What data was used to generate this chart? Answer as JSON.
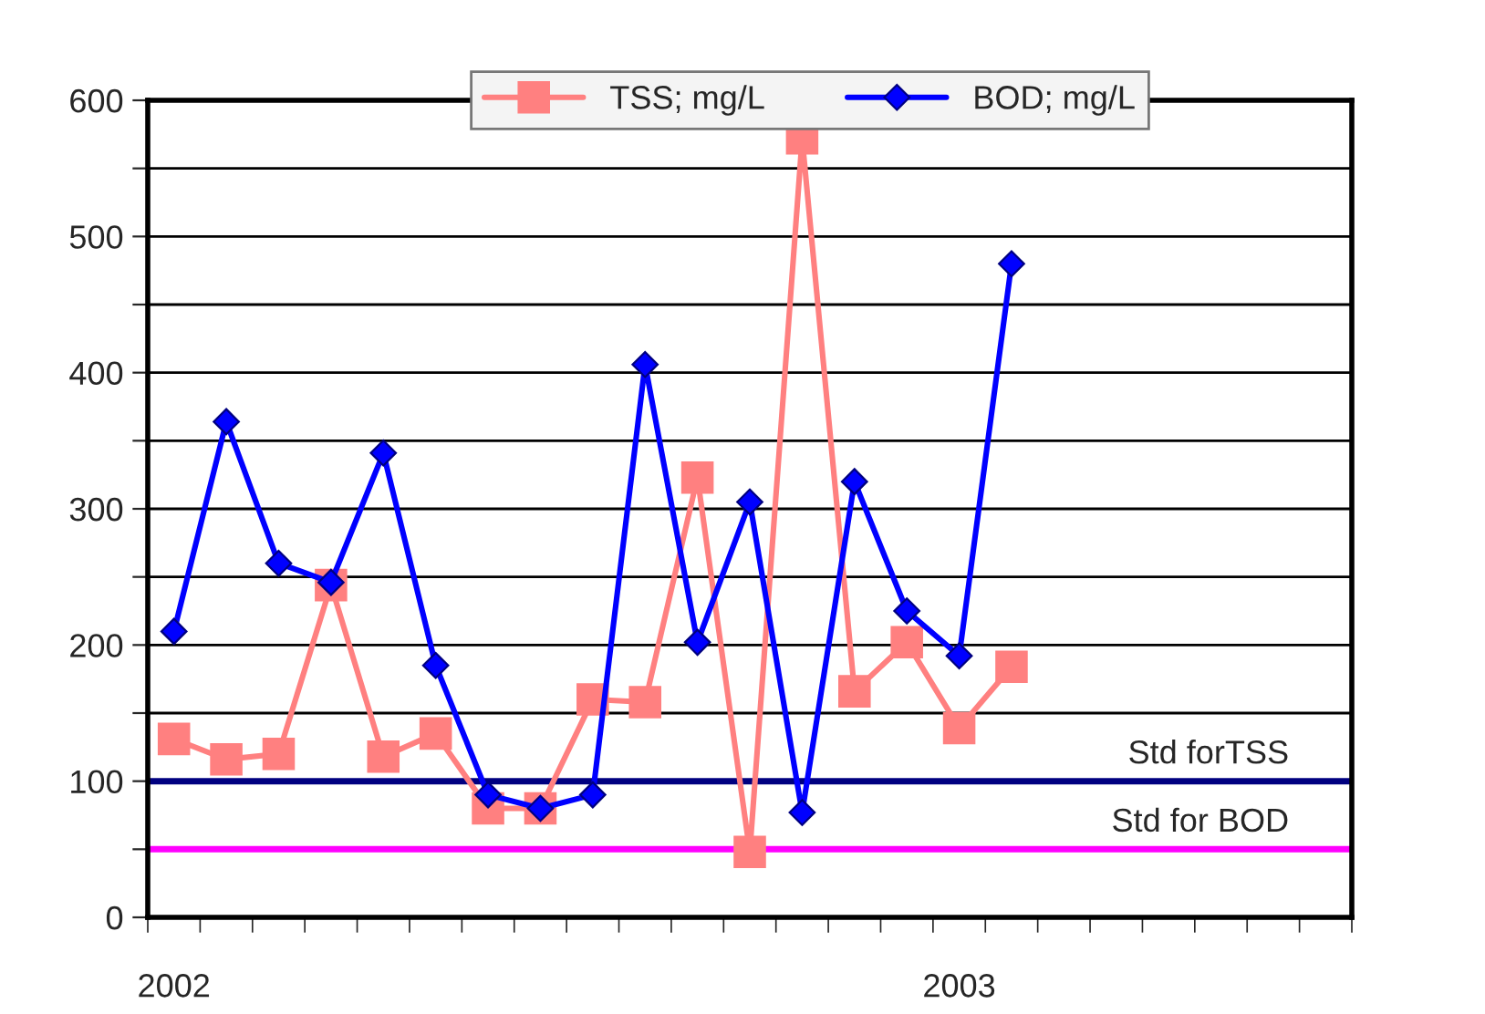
{
  "chart_data": {
    "type": "line",
    "categories": [
      "2002",
      null,
      null,
      null,
      null,
      null,
      null,
      null,
      null,
      null,
      null,
      null,
      null,
      null,
      null,
      "2003",
      null,
      null,
      null,
      null,
      null,
      null,
      null
    ],
    "series": [
      {
        "name": "TSS; mg/L",
        "color": "#ff8080",
        "marker": "square",
        "values": [
          131,
          116,
          120,
          244,
          118,
          135,
          80,
          80,
          160,
          158,
          323,
          48,
          572,
          166,
          202,
          139,
          184,
          null,
          null,
          null,
          null,
          null,
          null
        ]
      },
      {
        "name": "BOD; mg/L",
        "color": "#0000ff",
        "marker": "diamond",
        "values": [
          210,
          364,
          260,
          246,
          341,
          185,
          90,
          80,
          90,
          406,
          202,
          305,
          77,
          320,
          225,
          192,
          480,
          null,
          null,
          null,
          null,
          null,
          null
        ]
      }
    ],
    "ylim": [
      0,
      600
    ],
    "yticks": [
      0,
      {
        "value": 50,
        "label": null
      },
      100,
      {
        "value": 150,
        "label": null
      },
      200,
      {
        "value": 250,
        "label": null
      },
      300,
      {
        "value": 350,
        "label": null
      },
      400,
      {
        "value": 450,
        "label": null
      },
      500,
      {
        "value": 550,
        "label": null
      },
      600
    ],
    "grid": "y",
    "legend": "top",
    "line_style": "solid",
    "ref_lines": [
      {
        "axis": "y",
        "value": 100,
        "label": "Std forTSS",
        "color": "#000080"
      },
      {
        "axis": "y",
        "value": 50,
        "label": "Std for BOD",
        "color": "#ff00ff"
      }
    ]
  }
}
